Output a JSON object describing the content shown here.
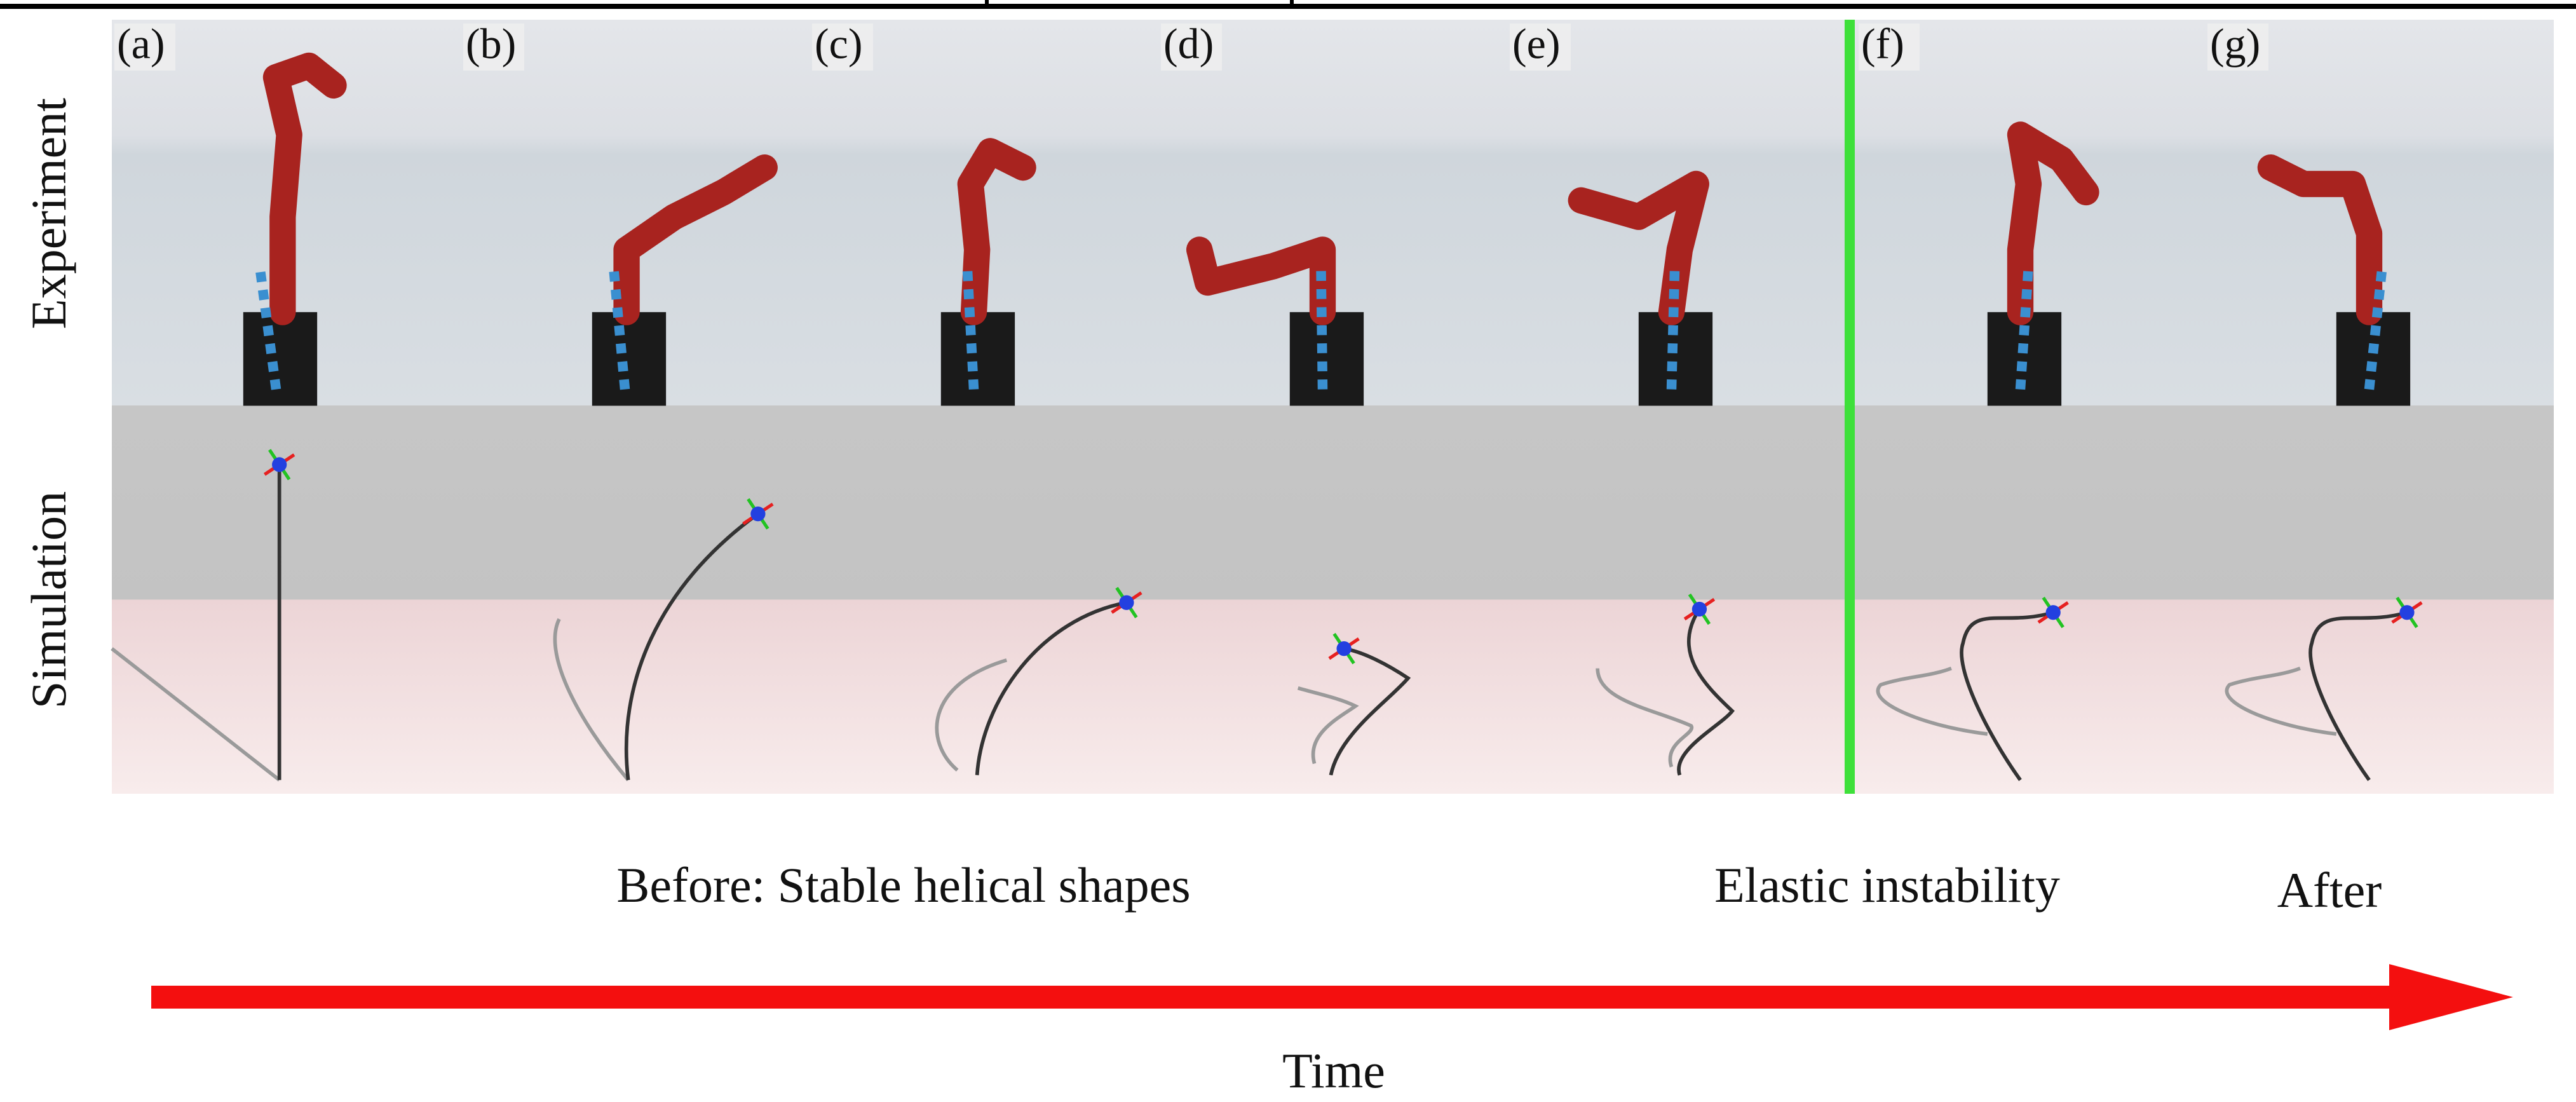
{
  "figure": {
    "row_labels": [
      "Experiment",
      "Simulation"
    ],
    "panels": [
      "(a)",
      "(b)",
      "(c)",
      "(d)",
      "(e)",
      "(f)",
      "(g)"
    ],
    "annotations": [
      "Before: Stable helical shapes",
      "Elastic instability",
      "After"
    ],
    "axis_label": "Time"
  }
}
